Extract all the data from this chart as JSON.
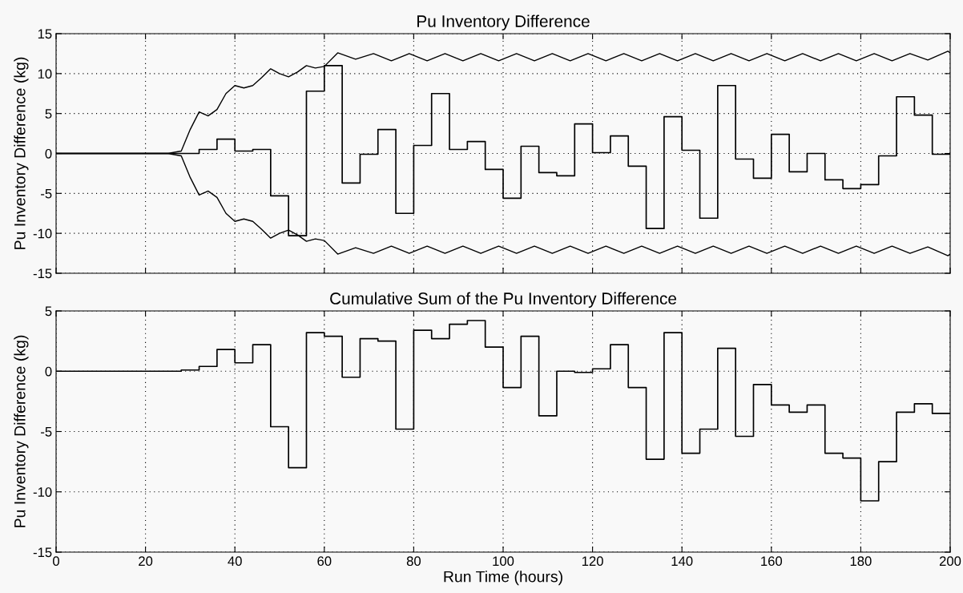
{
  "chart_data": [
    {
      "type": "step",
      "title": "Pu Inventory Difference",
      "ylabel": "Pu Inventory Difference (kg)",
      "xlim": [
        0,
        200
      ],
      "xticks": [
        0,
        20,
        40,
        60,
        80,
        100,
        120,
        140,
        160,
        180,
        200
      ],
      "ylim": [
        -15,
        15
      ],
      "yticks": [
        -15,
        -10,
        -5,
        0,
        5,
        10,
        15
      ],
      "grid": true,
      "tick_labels": "y",
      "series": [
        {
          "color": "#000000",
          "x": [
            0,
            28,
            32,
            36,
            40,
            44,
            48,
            52,
            56,
            60,
            64,
            68,
            72,
            76,
            80,
            84,
            88,
            92,
            96,
            100,
            104,
            108,
            112,
            116,
            120,
            124,
            128,
            132,
            136,
            140,
            144,
            148,
            152,
            156,
            160,
            164,
            168,
            172,
            176,
            180,
            184,
            188,
            192,
            196,
            200
          ],
          "values": [
            0,
            0,
            0.5,
            1.8,
            0.3,
            0.5,
            -5.3,
            -10.3,
            7.8,
            11,
            -3.7,
            -0.1,
            3,
            -7.5,
            1,
            7.5,
            0.5,
            1.5,
            -2,
            -5.6,
            0.9,
            -2.4,
            -2.8,
            3.7,
            0.1,
            2.2,
            -1.6,
            -9.4,
            4.6,
            0.4,
            -8.1,
            8.5,
            -0.7,
            -3.1,
            2.4,
            -2.3,
            0,
            -3.3,
            -4.4,
            -3.9,
            -0.3,
            7.1,
            4.8,
            -0.1,
            -0.1
          ]
        },
        {
          "type": "line",
          "color": "#000000",
          "x": [
            0,
            25,
            28,
            30,
            32,
            34,
            36,
            38,
            40,
            42,
            44,
            46,
            48,
            50,
            52,
            54,
            56,
            58,
            60,
            63,
            67,
            71,
            75,
            79,
            83,
            87,
            91,
            95,
            99,
            103,
            107,
            111,
            115,
            119,
            123,
            127,
            131,
            135,
            139,
            143,
            147,
            151,
            155,
            159,
            163,
            167,
            171,
            175,
            179,
            183,
            187,
            191,
            195,
            199.5,
            200
          ],
          "values": [
            0,
            0,
            0.3,
            3,
            5.2,
            4.7,
            5.5,
            7.5,
            8.5,
            8.2,
            8.5,
            9.5,
            10.6,
            10,
            9.6,
            10.2,
            11,
            10.7,
            10.9,
            12.6,
            11.8,
            12.5,
            11.6,
            12.5,
            11.6,
            12.5,
            11.6,
            12.5,
            11.6,
            12.5,
            11.6,
            12.5,
            11.6,
            12.5,
            11.6,
            12.5,
            11.6,
            12.5,
            11.6,
            12.5,
            11.6,
            12.5,
            11.6,
            12.5,
            11.6,
            12.5,
            11.6,
            12.5,
            11.6,
            12.5,
            11.6,
            12.5,
            11.7,
            12.8,
            12.6
          ]
        },
        {
          "type": "line",
          "color": "#000000",
          "x": [
            0,
            25,
            28,
            30,
            32,
            34,
            36,
            38,
            40,
            42,
            44,
            46,
            48,
            50,
            52,
            54,
            56,
            58,
            60,
            63,
            67,
            71,
            75,
            79,
            83,
            87,
            91,
            95,
            99,
            103,
            107,
            111,
            115,
            119,
            123,
            127,
            131,
            135,
            139,
            143,
            147,
            151,
            155,
            159,
            163,
            167,
            171,
            175,
            179,
            183,
            187,
            191,
            195,
            199.5,
            200
          ],
          "values": [
            0,
            0,
            -0.3,
            -3,
            -5.2,
            -4.7,
            -5.5,
            -7.5,
            -8.5,
            -8.2,
            -8.5,
            -9.5,
            -10.6,
            -10,
            -9.6,
            -10.2,
            -11,
            -10.7,
            -10.9,
            -12.6,
            -11.8,
            -12.5,
            -11.6,
            -12.5,
            -11.6,
            -12.5,
            -11.6,
            -12.5,
            -11.6,
            -12.5,
            -11.6,
            -12.5,
            -11.6,
            -12.5,
            -11.6,
            -12.5,
            -11.6,
            -12.5,
            -11.6,
            -12.5,
            -11.6,
            -12.5,
            -11.6,
            -12.5,
            -11.6,
            -12.5,
            -11.6,
            -12.5,
            -11.6,
            -12.5,
            -11.6,
            -12.5,
            -11.7,
            -12.8,
            -12.6
          ]
        }
      ]
    },
    {
      "type": "step",
      "title": "Cumulative Sum of the Pu Inventory Difference",
      "xlabel": "Run Time (hours)",
      "ylabel": "Pu Inventory Difference (kg)",
      "xlim": [
        0,
        200
      ],
      "xticks": [
        0,
        20,
        40,
        60,
        80,
        100,
        120,
        140,
        160,
        180,
        200
      ],
      "ylim": [
        -15,
        5
      ],
      "yticks": [
        -15,
        -10,
        -5,
        0,
        5
      ],
      "grid": true,
      "series": [
        {
          "color": "#000000",
          "x": [
            0,
            28,
            32,
            36,
            40,
            44,
            48,
            52,
            56,
            60,
            64,
            68,
            72,
            76,
            80,
            84,
            88,
            92,
            96,
            100,
            104,
            108,
            112,
            116,
            120,
            124,
            128,
            132,
            136,
            140,
            144,
            148,
            152,
            156,
            160,
            164,
            168,
            172,
            176,
            180,
            184,
            188,
            192,
            196,
            200
          ],
          "values": [
            0,
            0.1,
            0.4,
            1.8,
            0.7,
            2.2,
            -4.6,
            -8,
            3.2,
            2.9,
            -0.5,
            2.7,
            2.5,
            -4.8,
            3.4,
            2.7,
            3.9,
            4.2,
            2,
            -1.35,
            2.9,
            -3.7,
            0,
            -0.1,
            0.2,
            2.2,
            -1.35,
            -7.3,
            3.2,
            -6.8,
            -4.8,
            1.9,
            -5.4,
            -1.1,
            -2.8,
            -3.4,
            -2.8,
            -6.8,
            -7.2,
            -10.75,
            -7.5,
            -3.4,
            -2.7,
            -3.5,
            -3.5
          ]
        }
      ]
    }
  ]
}
